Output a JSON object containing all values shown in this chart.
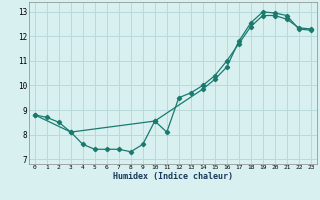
{
  "xlabel": "Humidex (Indice chaleur)",
  "xlim": [
    -0.5,
    23.5
  ],
  "ylim": [
    6.8,
    13.4
  ],
  "yticks": [
    7,
    8,
    9,
    10,
    11,
    12,
    13
  ],
  "xticks": [
    0,
    1,
    2,
    3,
    4,
    5,
    6,
    7,
    8,
    9,
    10,
    11,
    12,
    13,
    14,
    15,
    16,
    17,
    18,
    19,
    20,
    21,
    22,
    23
  ],
  "line1_x": [
    0,
    1,
    2,
    3,
    4,
    5,
    6,
    7,
    8,
    9,
    10,
    11,
    12,
    13,
    14,
    15,
    16,
    17,
    18,
    19,
    20,
    21,
    22,
    23
  ],
  "line1_y": [
    8.8,
    8.7,
    8.5,
    8.1,
    7.6,
    7.4,
    7.4,
    7.4,
    7.3,
    7.6,
    8.55,
    8.1,
    9.5,
    9.7,
    10.0,
    10.4,
    11.0,
    11.7,
    12.4,
    12.85,
    12.85,
    12.7,
    12.35,
    12.3
  ],
  "line2_x": [
    0,
    3,
    10,
    14,
    15,
    16,
    17,
    18,
    19,
    20,
    21,
    22,
    23
  ],
  "line2_y": [
    8.8,
    8.1,
    8.55,
    9.85,
    10.25,
    10.75,
    11.8,
    12.55,
    13.0,
    12.95,
    12.85,
    12.3,
    12.25
  ],
  "color": "#1a7a6e",
  "bg_color": "#d8f0f0",
  "grid_color": "#b8dada",
  "marker": "D",
  "markersize": 2.2,
  "linewidth": 0.9
}
